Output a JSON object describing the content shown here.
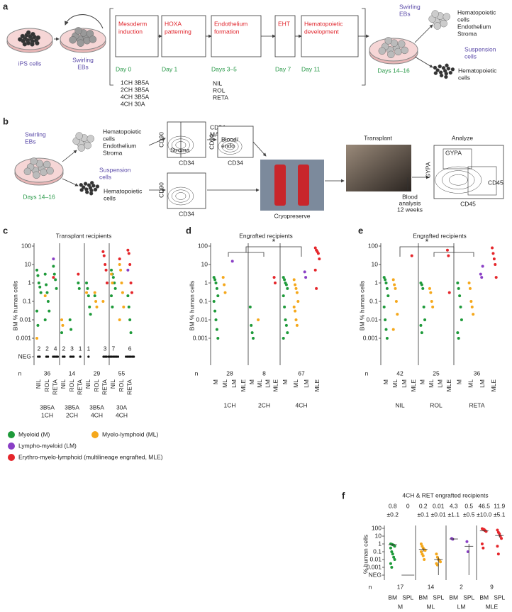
{
  "panel_a": {
    "label": "a",
    "start": "iPS cells",
    "ebs": [
      "Swirling",
      "EBs"
    ],
    "steps": [
      {
        "title": [
          "Mesoderm",
          "induction"
        ],
        "day": "Day 0"
      },
      {
        "title": [
          "HOXA",
          "patterning"
        ],
        "day": "Day 1"
      },
      {
        "title": [
          "Endothelium",
          "formation"
        ],
        "day": "Days 3–5"
      },
      {
        "title": [
          "EHT"
        ],
        "day": "Day 7"
      },
      {
        "title": [
          "Hematopoietic",
          "development"
        ],
        "day": "Day 11"
      }
    ],
    "conditions": [
      "1CH 3B5A",
      "2CH 3B5A",
      "4CH 3B5A",
      "4CH 30A"
    ],
    "treatments": [
      "NIL",
      "ROL",
      "RETA"
    ],
    "end_ebs": [
      "Swirling",
      "EBs"
    ],
    "end_day": "Days 14–16",
    "ebs_cells": [
      "Hematopoietic",
      "cells",
      "Endothelium",
      "Stroma"
    ],
    "suspension": [
      "Suspension",
      "cells"
    ],
    "suspension_cells": [
      "Hematopoietic",
      "cells"
    ]
  },
  "panel_b": {
    "label": "b",
    "ebs": [
      "Swirling",
      "EBs"
    ],
    "day": "Days 14–16",
    "ebs_cells": [
      "Hematopoietic",
      "cells",
      "Endothelium",
      "Stroma"
    ],
    "suspension": [
      "Suspension",
      "cells"
    ],
    "suspension_cells": [
      "Hematopoietic",
      "cells"
    ],
    "flow1": {
      "y": "CD90",
      "x": "CD34",
      "gate": "Stroma"
    },
    "macs": [
      "CD34",
      "MACS"
    ],
    "flow2": {
      "y": "CD90",
      "x": "CD34",
      "gate": [
        "Blood/",
        "endo"
      ]
    },
    "flow3": {
      "y": "CD90",
      "x": "CD34"
    },
    "cryo": "Cryopreserve",
    "transplant": "Transplant",
    "blood": [
      "Blood",
      "analysis",
      "12 weeks"
    ],
    "analyze": "Analyze",
    "flow4": {
      "y": "GYPA",
      "x": "CD45",
      "gate1": "GYPA",
      "gate2": "CD45"
    }
  },
  "panel_c": {
    "label": "c",
    "title": "Transplant recipients",
    "ylabel": "BM % human cells",
    "n_label": "n",
    "yticks": [
      100,
      10,
      1,
      0.1,
      0.01,
      0.001,
      {
        "value": 0,
        "label": "NEG"
      }
    ],
    "groups": [
      {
        "label": [
          "3B5A",
          "1CH"
        ],
        "n": 36,
        "categories": [
          "NIL",
          "ROL",
          "RETA"
        ],
        "neg": [
          2,
          2,
          4
        ],
        "points": [
          {
            "M": [
              5,
              2.5,
              1,
              0.6,
              0.3,
              0.03,
              0.005
            ],
            "ML": [
              0.001
            ]
          },
          {
            "M": [
              3,
              0.8,
              0.3,
              0.1,
              0.03,
              0.01
            ],
            "ML": [
              0.2
            ]
          },
          {
            "M": [
              8,
              3,
              1.5,
              0.5
            ],
            "MLE": [
              2
            ],
            "LM": [
              20
            ]
          }
        ]
      },
      {
        "label": [
          "3B5A",
          "2CH"
        ],
        "n": 14,
        "categories": [
          "NIL",
          "ROL",
          "RETA"
        ],
        "neg": [
          2,
          3,
          1
        ],
        "points": [
          {
            "M": [
              0.002
            ],
            "ML": [
              0.01,
              0.005
            ]
          },
          {
            "M": [
              0.01,
              0.003
            ]
          },
          {
            "M": [
              1,
              0.5
            ],
            "MLE": [
              3
            ]
          }
        ]
      },
      {
        "label": [
          "3B5A",
          "4CH"
        ],
        "n": 29,
        "categories": [
          "NIL",
          "ROL",
          "RETA"
        ],
        "neg": [
          1,
          null,
          3
        ],
        "points": [
          {
            "M": [
              1,
              0.5,
              0.2,
              0.05,
              0.02
            ],
            "ML": [
              0.3
            ]
          },
          {
            "ML": [
              0.3,
              0.1,
              0.05
            ],
            "M": [
              0.2
            ]
          },
          {
            "MLE": [
              50,
              30,
              10,
              5,
              1
            ],
            "ML": [
              0.1
            ]
          }
        ]
      },
      {
        "label": [
          "30A",
          "4CH"
        ],
        "n": 55,
        "categories": [
          "NIL",
          "ROL",
          "RETA"
        ],
        "neg": [
          7,
          null,
          6
        ],
        "points": [
          {
            "M": [
              5,
              3,
              2,
              1,
              0.5,
              0.2,
              0.05
            ],
            "ML": [
              3,
              1
            ]
          },
          {
            "ML": [
              10,
              5,
              1,
              0.3,
              0.05,
              0.01
            ],
            "MLE": [
              20
            ]
          },
          {
            "MLE": [
              60,
              40,
              10,
              1,
              0.3
            ],
            "M": [
              0.2,
              0.05,
              0.01,
              0.002
            ],
            "LM": [
              5
            ]
          }
        ]
      }
    ]
  },
  "panel_d": {
    "label": "d",
    "title": "Engrafted recipients",
    "star": "*",
    "ylabel": "BM % human cells",
    "n_label": "n",
    "yticks": [
      100,
      10,
      1,
      0.1,
      0.01,
      0.001
    ],
    "groups": [
      {
        "label": "1CH",
        "n": 28,
        "categories": [
          "M",
          "ML",
          "LM",
          "MLE"
        ],
        "values": [
          [
            2,
            1.5,
            1,
            0.5,
            0.2,
            0.1,
            0.03,
            0.01,
            0.003,
            0.001
          ],
          [
            2,
            0.8,
            0.3
          ],
          [
            15
          ],
          []
        ]
      },
      {
        "label": "2CH",
        "n": 8,
        "categories": [
          "M",
          "ML",
          "LM",
          "MLE"
        ],
        "values": [
          [
            0.05,
            0.005,
            0.002,
            0.001
          ],
          [
            0.01
          ],
          [],
          [
            2,
            1
          ]
        ]
      },
      {
        "label": "4CH",
        "n": 67,
        "categories": [
          "M",
          "ML",
          "LM",
          "MLE"
        ],
        "values": [
          [
            2,
            1.5,
            1,
            0.8,
            0.5,
            0.2,
            0.05,
            0.01,
            0.005,
            0.002,
            0.001
          ],
          [
            1.5,
            0.8,
            0.5,
            0.3,
            0.1,
            0.05,
            0.03,
            0.01,
            0.005
          ],
          [
            4,
            2
          ],
          [
            80,
            60,
            50,
            40,
            20,
            5,
            0.5
          ]
        ]
      }
    ]
  },
  "panel_e": {
    "label": "e",
    "title": "Engrafted recipients",
    "star": "*",
    "ylabel": "BM % human cells",
    "n_label": "n",
    "yticks": [
      100,
      10,
      1,
      0.1,
      0.01,
      0.001
    ],
    "groups": [
      {
        "label": "NIL",
        "n": 42,
        "categories": [
          "M",
          "ML",
          "LM",
          "MLE"
        ],
        "values": [
          [
            2,
            1.5,
            1,
            0.5,
            0.2,
            0.05,
            0.01,
            0.003,
            0.001
          ],
          [
            1.5,
            0.8,
            0.5,
            0.1,
            0.02,
            0.003
          ],
          [],
          [
            30
          ]
        ]
      },
      {
        "label": "ROL",
        "n": 25,
        "categories": [
          "M",
          "ML",
          "LM",
          "MLE"
        ],
        "values": [
          [
            1,
            0.8,
            0.5,
            0.05,
            0.01,
            0.005,
            0.002
          ],
          [
            0.5,
            0.3,
            0.1,
            0.05
          ],
          [],
          [
            60,
            30,
            0.3
          ]
        ]
      },
      {
        "label": "RETA",
        "n": 36,
        "categories": [
          "M",
          "ML",
          "LM",
          "MLE"
        ],
        "values": [
          [
            1,
            0.5,
            0.2,
            0.05,
            0.01,
            0.002,
            0.001
          ],
          [
            1,
            0.5,
            0.1,
            0.05,
            0.02
          ],
          [
            3,
            2,
            8
          ],
          [
            80,
            40,
            20,
            10,
            2
          ]
        ]
      }
    ]
  },
  "legend": {
    "entries": [
      {
        "key": "M",
        "name": "Myeloid (M)",
        "color": "#1e9a3a"
      },
      {
        "key": "ML",
        "name": "Myelo-lymphoid (ML)",
        "color": "#f5a81c"
      },
      {
        "key": "LM",
        "name": "Lympho-myeloid (LM)",
        "color": "#8a3fc6"
      },
      {
        "key": "MLE",
        "name": "Erythro-myelo-lymphoid (multilineage engrafted, MLE)",
        "color": "#e5262b"
      }
    ]
  },
  "panel_f": {
    "label": "f",
    "title": "4CH & RET engrafted recipients",
    "ylabel": "% human cells",
    "n_label": "n",
    "yticks": [
      100,
      10,
      1,
      0.1,
      0.01,
      0.001,
      {
        "value": 0,
        "label": "NEG"
      }
    ],
    "groups": [
      {
        "label": "M",
        "n": 17,
        "categories": [
          "BM",
          "SPL"
        ],
        "values": [
          [
            1,
            0.9,
            0.8,
            0.7,
            0.5,
            0.3,
            0.1,
            0.05,
            0.02,
            0.01,
            0.003,
            0.001
          ],
          []
        ],
        "means": [
          0.8,
          0
        ],
        "sems": [
          0.2,
          null
        ],
        "sem_labels": [
          "±0.2",
          null
        ]
      },
      {
        "label": "ML",
        "n": 14,
        "categories": [
          "BM",
          "SPL"
        ],
        "values": [
          [
            1,
            0.5,
            0.3,
            0.2,
            0.15,
            0.1,
            0.05,
            0.03,
            0.01
          ],
          [
            0.05,
            0.02,
            0.01,
            0.008,
            0.005,
            0.003,
            0.002
          ]
        ],
        "means": [
          0.2,
          0.01
        ],
        "sems": [
          0.1,
          0.01
        ],
        "sem_labels": [
          "±0.1",
          "±0.01"
        ]
      },
      {
        "label": "LM",
        "n": 2,
        "categories": [
          "BM",
          "SPL"
        ],
        "values": [
          [
            5,
            4
          ],
          [
            2,
            0.1
          ]
        ],
        "means": [
          4.3,
          0.5
        ],
        "sems": [
          1.1,
          0.5
        ],
        "sem_labels": [
          "±1.1",
          "±0.5"
        ]
      },
      {
        "label": "MLE",
        "n": 9,
        "categories": [
          "BM",
          "SPL"
        ],
        "values": [
          [
            90,
            80,
            70,
            50,
            40,
            1,
            0.3
          ],
          [
            60,
            30,
            20,
            10,
            5,
            0.5,
            0.05
          ]
        ],
        "means": [
          46.5,
          11.9
        ],
        "sems": [
          10.0,
          5.1
        ],
        "sem_labels": [
          "±10.0",
          "±5.1"
        ]
      }
    ]
  }
}
